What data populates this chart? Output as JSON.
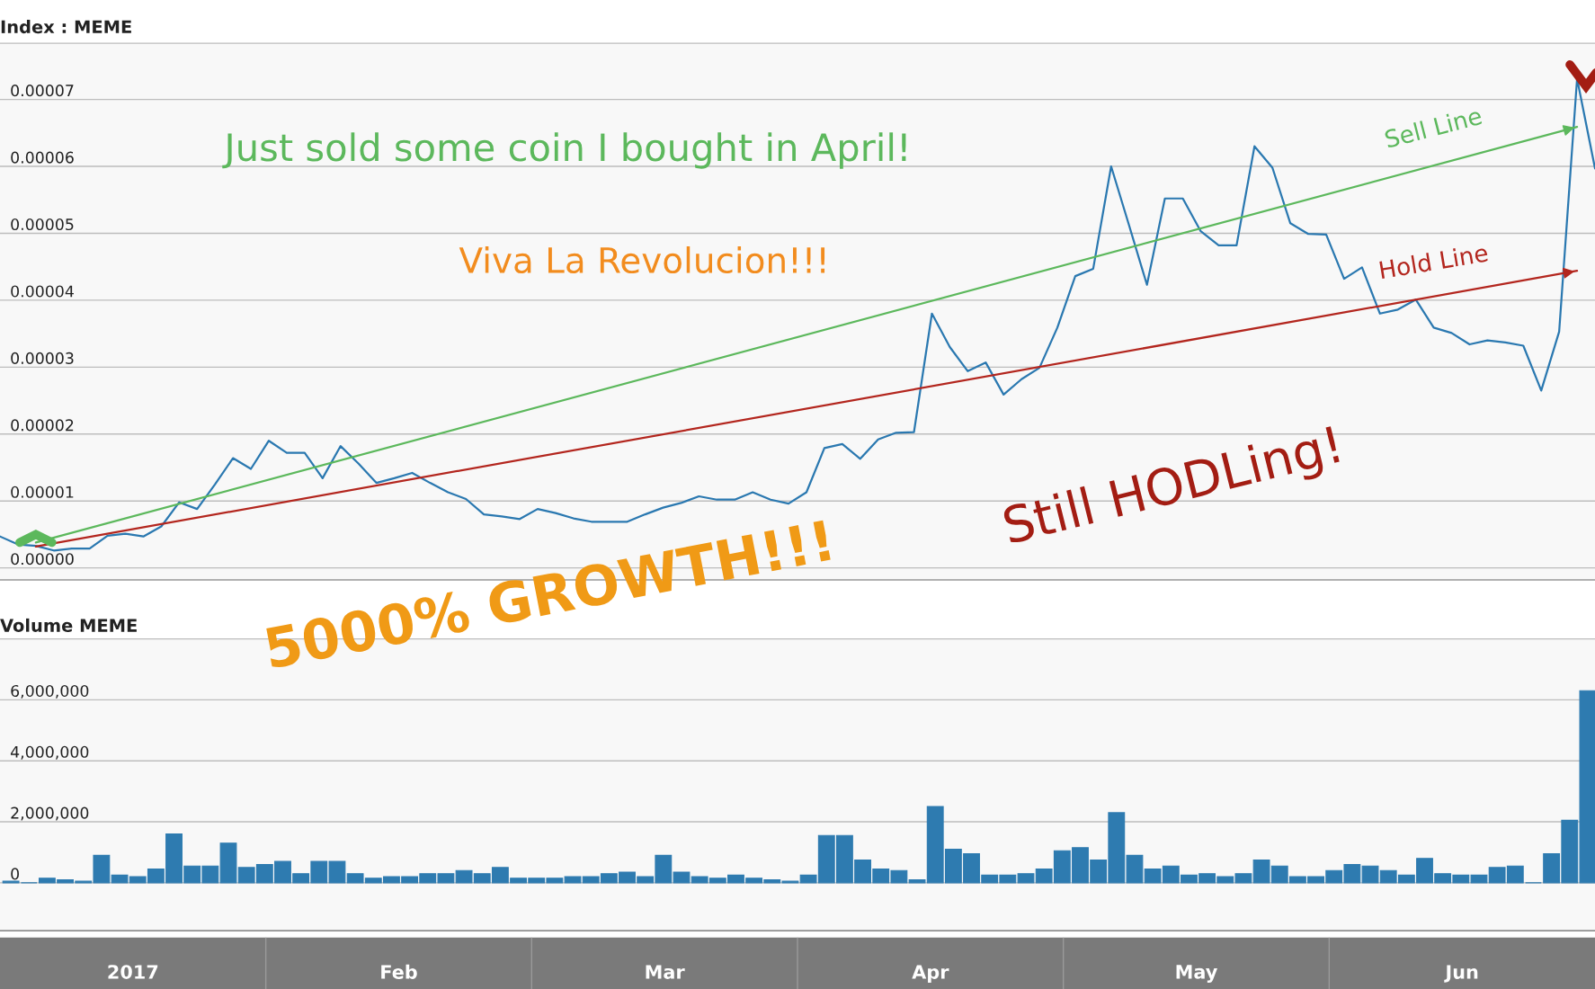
{
  "chart_data": [
    {
      "type": "line",
      "title": "Index : MEME",
      "categories": [
        null,
        null,
        null,
        null,
        null,
        null,
        null,
        null,
        null,
        null,
        null,
        null,
        null,
        null,
        null,
        null,
        null,
        null,
        null,
        null,
        null,
        null,
        null,
        null,
        null,
        null,
        null,
        null,
        null,
        null,
        null,
        null,
        null,
        null,
        null,
        null,
        null,
        null,
        null,
        null,
        null,
        null,
        null,
        null,
        null,
        null,
        null,
        null,
        null,
        null,
        null,
        null,
        null,
        null,
        null,
        null,
        null,
        null,
        null,
        null,
        null,
        null,
        null,
        null,
        null,
        null,
        null,
        null,
        null,
        null,
        null,
        null,
        null,
        null,
        null,
        null,
        null,
        null,
        null,
        null,
        null,
        null,
        null,
        null,
        null,
        null,
        null,
        null,
        null,
        null
      ],
      "series": [
        {
          "type": "line",
          "color": "#2a78b0",
          "values": [
            4.7e-06,
            3.5e-06,
            3.3e-06,
            2.6e-06,
            2.9e-06,
            2.9e-06,
            4.8e-06,
            5.1e-06,
            4.7e-06,
            6.2e-06,
            9.8e-06,
            8.8e-06,
            1.25e-05,
            1.64e-05,
            1.48e-05,
            1.9e-05,
            1.72e-05,
            1.72e-05,
            1.34e-05,
            1.82e-05,
            1.56e-05,
            1.27e-05,
            1.34e-05,
            1.42e-05,
            1.27e-05,
            1.13e-05,
            1.03e-05,
            8e-06,
            7.7e-06,
            7.3e-06,
            8.8e-06,
            8.2e-06,
            7.4e-06,
            6.9e-06,
            6.9e-06,
            6.9e-06,
            8e-06,
            9e-06,
            9.7e-06,
            1.07e-05,
            1.02e-05,
            1.02e-05,
            1.13e-05,
            1.02e-05,
            9.6e-06,
            1.13e-05,
            1.79e-05,
            1.85e-05,
            1.63e-05,
            1.92e-05,
            2.02e-05,
            2.03e-05,
            3.8e-05,
            3.3e-05,
            2.94e-05,
            3.07e-05,
            2.59e-05,
            2.82e-05,
            2.99e-05,
            3.59e-05,
            4.36e-05,
            4.47e-05,
            6e-05,
            5.12e-05,
            4.23e-05,
            5.52e-05,
            5.52e-05,
            5.03e-05,
            4.82e-05,
            4.82e-05,
            6.3e-05,
            5.98e-05,
            5.15e-05,
            4.99e-05,
            4.98e-05,
            4.32e-05,
            4.49e-05,
            3.8e-05,
            3.86e-05,
            4.01e-05,
            3.59e-05,
            3.51e-05,
            3.34e-05,
            3.4e-05,
            3.37e-05,
            3.32e-05,
            2.65e-05,
            3.53e-05,
            7.31e-05,
            5.97e-05
          ]
        },
        {
          "type": "line",
          "name": "Sell Line",
          "color": "#5cb85c",
          "values": [
            null,
            null,
            3.8e-06,
            null,
            null,
            null,
            null,
            null,
            null,
            null,
            null,
            null,
            null,
            null,
            null,
            null,
            null,
            null,
            null,
            null,
            null,
            null,
            null,
            null,
            null,
            null,
            null,
            null,
            null,
            null,
            null,
            null,
            null,
            null,
            null,
            null,
            null,
            null,
            null,
            null,
            null,
            null,
            null,
            null,
            null,
            null,
            null,
            null,
            null,
            null,
            null,
            null,
            null,
            null,
            null,
            null,
            null,
            null,
            null,
            null,
            null,
            null,
            null,
            null,
            null,
            null,
            null,
            null,
            null,
            null,
            null,
            null,
            null,
            null,
            null,
            null,
            null,
            null,
            null,
            null,
            null,
            null,
            null,
            null,
            null,
            null,
            null,
            null,
            6.59e-05,
            null
          ]
        },
        {
          "type": "line",
          "name": "Hold Line",
          "color": "#b3261e",
          "values": [
            null,
            null,
            3.2e-06,
            null,
            null,
            null,
            null,
            null,
            null,
            null,
            null,
            null,
            null,
            null,
            null,
            null,
            null,
            null,
            null,
            null,
            null,
            null,
            null,
            null,
            null,
            null,
            null,
            null,
            null,
            null,
            null,
            null,
            null,
            null,
            null,
            null,
            null,
            null,
            null,
            null,
            null,
            null,
            null,
            null,
            null,
            null,
            null,
            null,
            null,
            null,
            null,
            null,
            null,
            null,
            null,
            null,
            null,
            null,
            null,
            null,
            null,
            null,
            null,
            null,
            null,
            null,
            null,
            null,
            null,
            null,
            null,
            null,
            null,
            null,
            null,
            null,
            null,
            null,
            null,
            null,
            null,
            null,
            null,
            null,
            null,
            null,
            null,
            null,
            4.44e-05,
            null
          ]
        }
      ],
      "ylim": [
        -1.8e-06,
        7.84e-05
      ],
      "yticks": [
        {
          "value": 0,
          "label": "0.00000"
        },
        {
          "value": 1e-05,
          "label": "0.00001"
        },
        {
          "value": 2e-05,
          "label": "0.00002"
        },
        {
          "value": 3e-05,
          "label": "0.00003"
        },
        {
          "value": 4e-05,
          "label": "0.00004"
        },
        {
          "value": 5e-05,
          "label": "0.00005"
        },
        {
          "value": 6e-05,
          "label": "0.00006"
        },
        {
          "value": 7e-05,
          "label": "0.00007"
        }
      ],
      "grid": "y",
      "tick_labels": "y",
      "annotations": [
        "Just sold some coin I bought in April!",
        "Viva La Revolucion!!!",
        "5000% GROWTH!!!",
        "Still HODLing!"
      ]
    },
    {
      "type": "bar",
      "title": "Volume MEME",
      "categories": [
        null,
        null,
        null,
        null,
        null,
        null,
        null,
        null,
        null,
        null,
        null,
        null,
        null,
        null,
        null,
        null,
        null,
        null,
        null,
        null,
        null,
        null,
        null,
        null,
        null,
        null,
        null,
        null,
        null,
        null,
        null,
        null,
        null,
        null,
        null,
        null,
        null,
        null,
        null,
        null,
        null,
        null,
        null,
        null,
        null,
        null,
        null,
        null,
        null,
        null,
        null,
        null,
        null,
        null,
        null,
        null,
        null,
        null,
        null,
        null,
        null,
        null,
        null,
        null,
        null,
        null,
        null,
        null,
        null,
        null,
        null,
        null,
        null,
        null,
        null,
        null,
        null,
        null,
        null,
        null,
        null,
        null,
        null,
        null,
        null,
        null,
        null,
        null
      ],
      "color": "#2e7bb0",
      "values": [
        50000,
        0,
        150000,
        100000,
        50000,
        900000,
        250000,
        200000,
        450000,
        1600000,
        550000,
        550000,
        1300000,
        500000,
        600000,
        700000,
        300000,
        700000,
        700000,
        300000,
        150000,
        200000,
        200000,
        300000,
        300000,
        400000,
        300000,
        500000,
        150000,
        150000,
        150000,
        200000,
        200000,
        300000,
        350000,
        200000,
        900000,
        350000,
        200000,
        150000,
        250000,
        150000,
        100000,
        50000,
        250000,
        1550000,
        1550000,
        750000,
        450000,
        400000,
        100000,
        2500000,
        1100000,
        950000,
        250000,
        250000,
        300000,
        450000,
        1050000,
        1150000,
        750000,
        2300000,
        900000,
        450000,
        550000,
        250000,
        300000,
        200000,
        300000,
        750000,
        550000,
        200000,
        200000,
        400000,
        600000,
        550000,
        400000,
        250000,
        800000,
        300000,
        250000,
        250000,
        500000,
        550000,
        0,
        950000,
        2050000,
        6300000
      ],
      "ylim": [
        -1570000,
        8000000
      ],
      "yticks": [
        0,
        {
          "value": 2000000,
          "label": "2,000,000"
        },
        {
          "value": 4000000,
          "label": "4,000,000"
        },
        {
          "value": 6000000,
          "label": "6,000,000"
        }
      ],
      "grid": "y",
      "tick_labels": "y"
    },
    {
      "type": "other",
      "categories": [
        "2017",
        "Feb",
        "Mar",
        "Apr",
        "May",
        "Jun"
      ]
    }
  ]
}
